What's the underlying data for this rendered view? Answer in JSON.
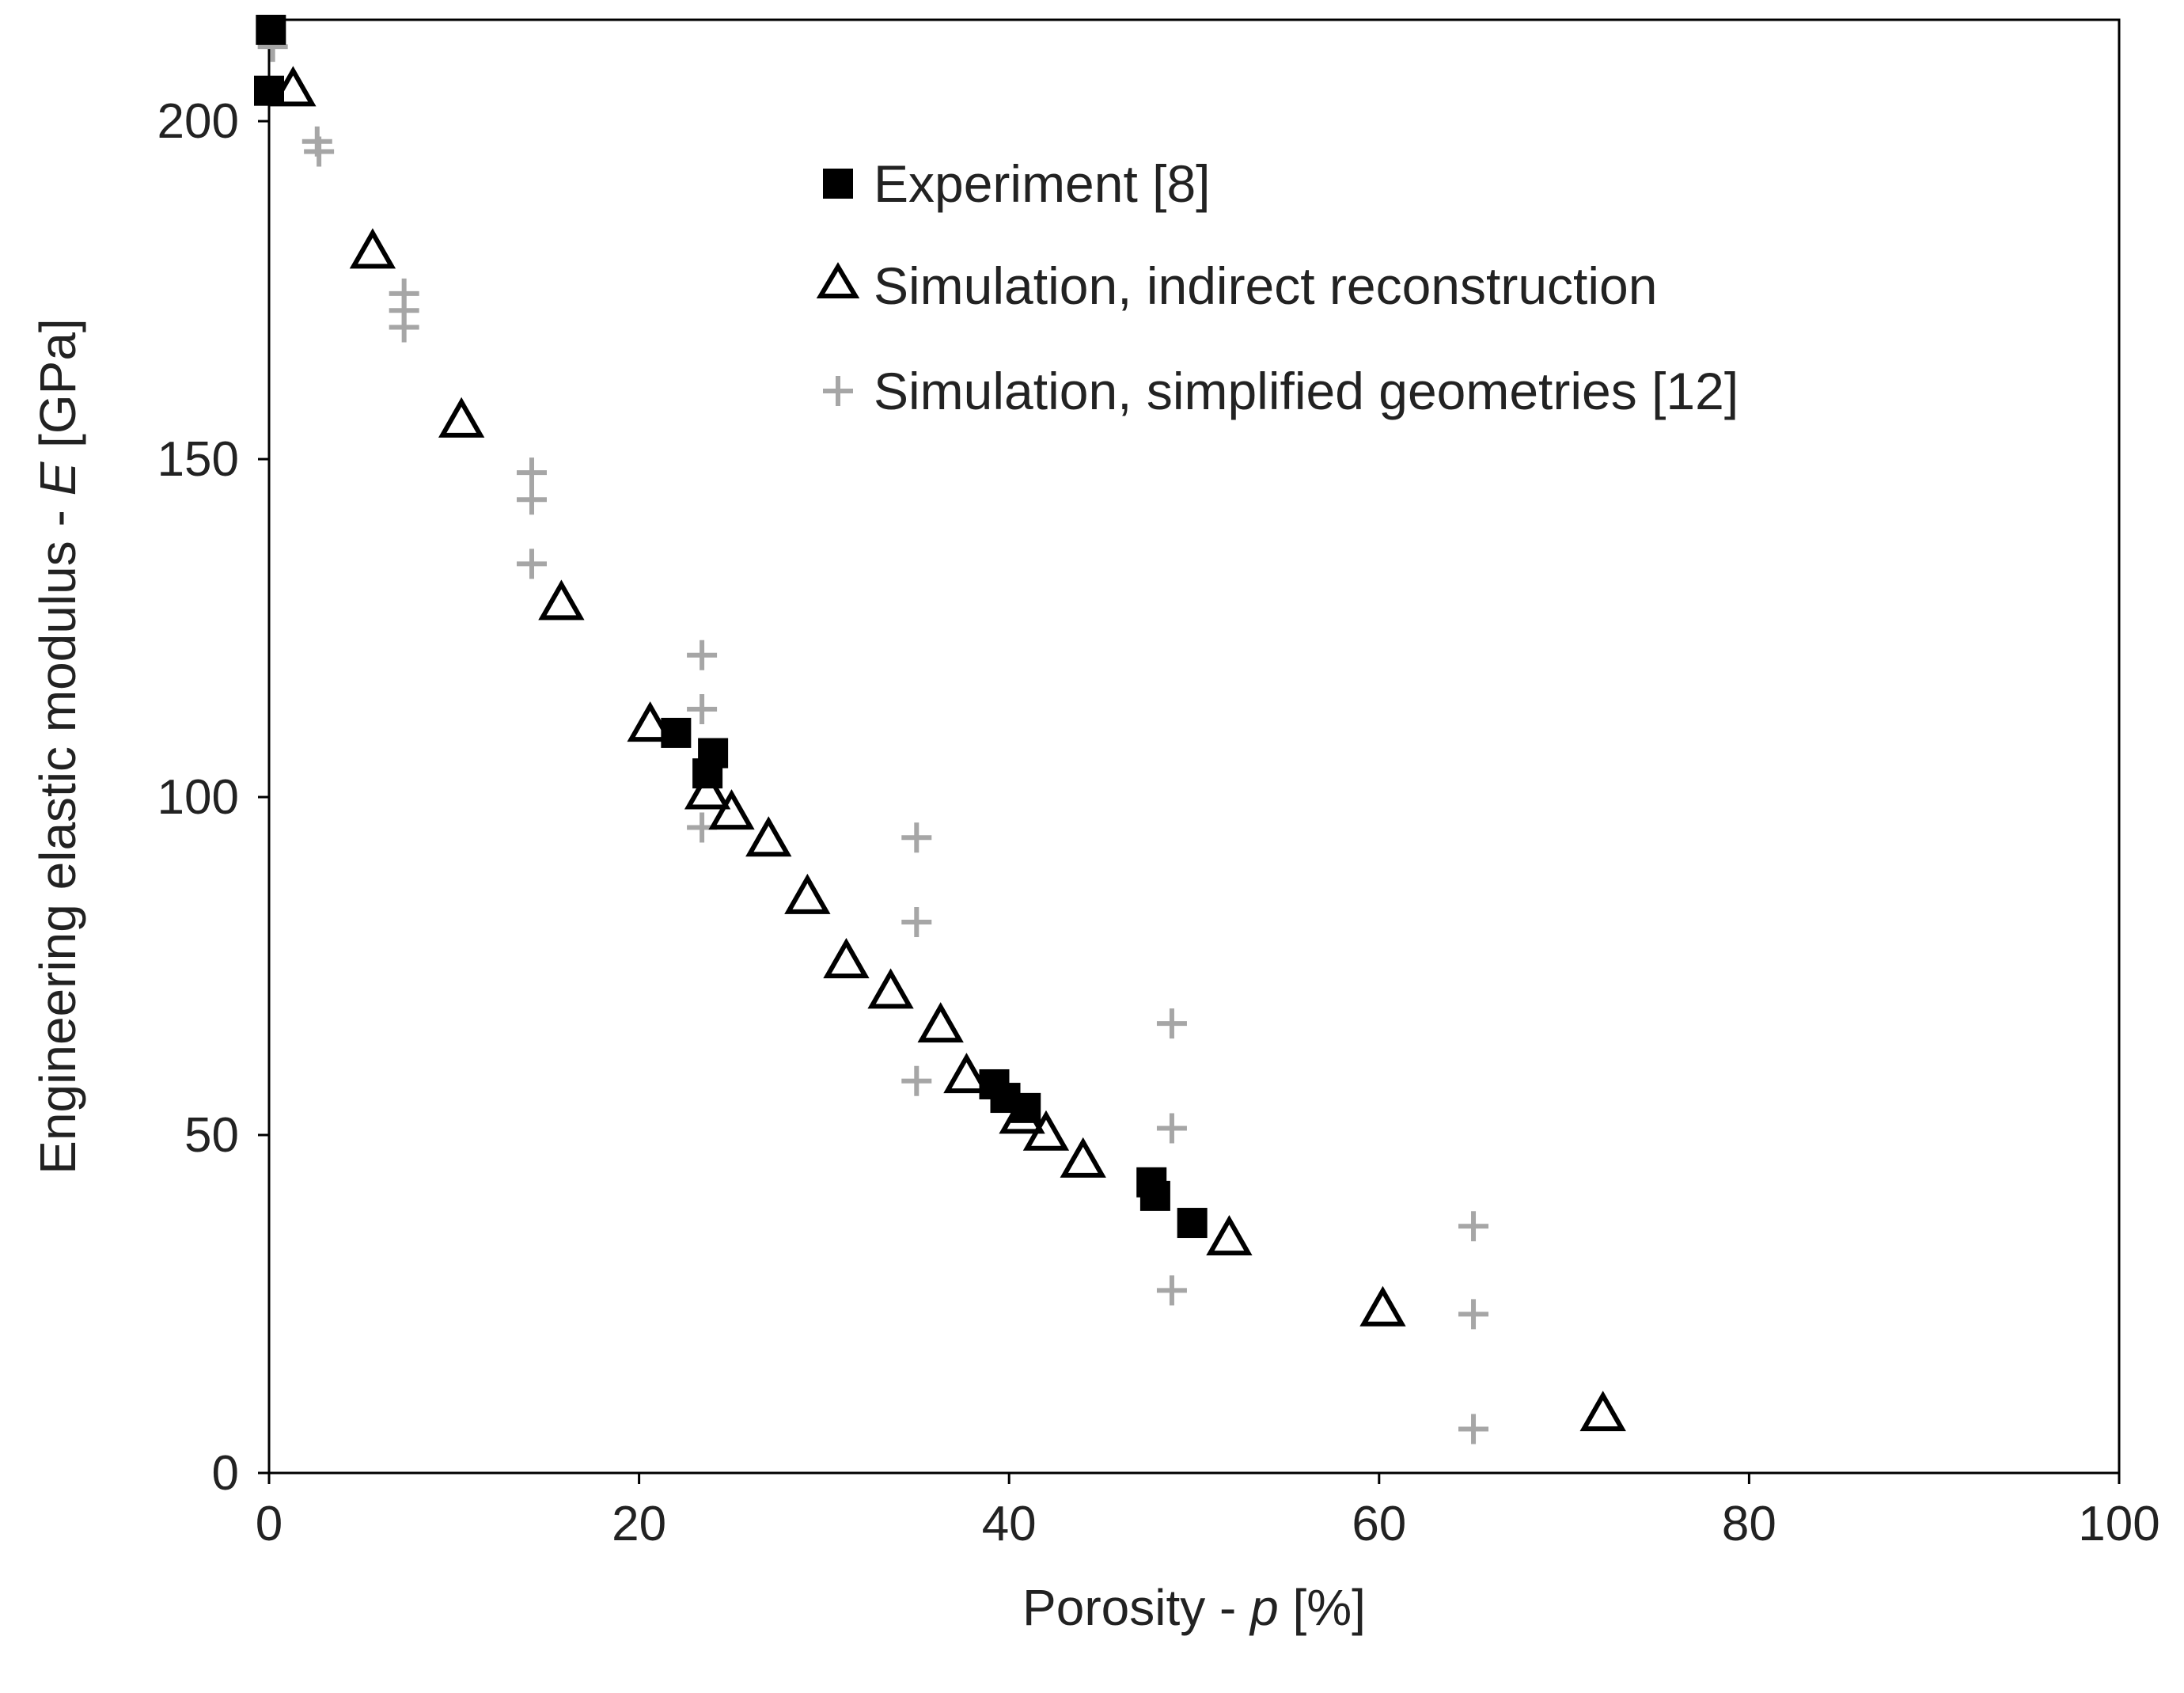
{
  "chart_data": {
    "type": "scatter",
    "title": "",
    "xlabel": {
      "prefix": "Porosity - ",
      "var": "p",
      "suffix": " [%]"
    },
    "ylabel": {
      "prefix": "Engineering elastic modulus - ",
      "var": "E",
      "suffix": " [GPa]"
    },
    "xlim": [
      0,
      100
    ],
    "ylim": [
      0,
      215
    ],
    "xticks": [
      0,
      20,
      40,
      60,
      80,
      100
    ],
    "yticks": [
      0,
      50,
      100,
      150,
      200
    ],
    "grid": false,
    "legend_position": "top-right",
    "colors": {
      "experiment": "#000000",
      "indirect": "#000000",
      "simplified": "#a6a6a6",
      "axis": "#000000"
    },
    "series": [
      {
        "name": "Experiment [8]",
        "marker": "filled-square",
        "points": [
          [
            0.1,
            213.5
          ],
          [
            0.0,
            204.5
          ],
          [
            22.0,
            109.5
          ],
          [
            24.0,
            106.5
          ],
          [
            23.7,
            103.5
          ],
          [
            39.2,
            57.5
          ],
          [
            39.8,
            55.5
          ],
          [
            40.9,
            54.0
          ],
          [
            47.7,
            43.0
          ],
          [
            47.9,
            41.0
          ],
          [
            49.9,
            37.0
          ]
        ]
      },
      {
        "name": "Simulation, indirect reconstruction",
        "marker": "open-triangle",
        "points": [
          [
            1.3,
            205.0
          ],
          [
            5.6,
            181.0
          ],
          [
            10.4,
            156.0
          ],
          [
            15.8,
            129.0
          ],
          [
            20.6,
            111.0
          ],
          [
            23.7,
            101.0
          ],
          [
            25.0,
            98.0
          ],
          [
            27.0,
            94.0
          ],
          [
            29.1,
            85.5
          ],
          [
            31.2,
            76.0
          ],
          [
            33.6,
            71.5
          ],
          [
            36.3,
            66.5
          ],
          [
            37.7,
            59.0
          ],
          [
            40.7,
            53.0
          ],
          [
            42.0,
            50.5
          ],
          [
            44.0,
            46.5
          ],
          [
            51.9,
            35.0
          ],
          [
            60.2,
            24.5
          ],
          [
            72.1,
            9.0
          ]
        ]
      },
      {
        "name": "Simulation, simplified geometries [12]",
        "marker": "plus",
        "points": [
          [
            0.2,
            211.0
          ],
          [
            2.6,
            197.0
          ],
          [
            2.7,
            195.5
          ],
          [
            7.3,
            174.5
          ],
          [
            7.3,
            172.0
          ],
          [
            7.3,
            169.5
          ],
          [
            14.2,
            148.0
          ],
          [
            14.2,
            144.0
          ],
          [
            14.2,
            134.5
          ],
          [
            23.4,
            121.0
          ],
          [
            23.4,
            113.0
          ],
          [
            23.4,
            95.5
          ],
          [
            35.0,
            94.0
          ],
          [
            35.0,
            81.5
          ],
          [
            35.0,
            58.0
          ],
          [
            48.8,
            66.5
          ],
          [
            48.8,
            51.0
          ],
          [
            48.8,
            27.0
          ],
          [
            65.1,
            36.5
          ],
          [
            65.1,
            23.5
          ],
          [
            65.1,
            6.5
          ]
        ]
      }
    ]
  }
}
